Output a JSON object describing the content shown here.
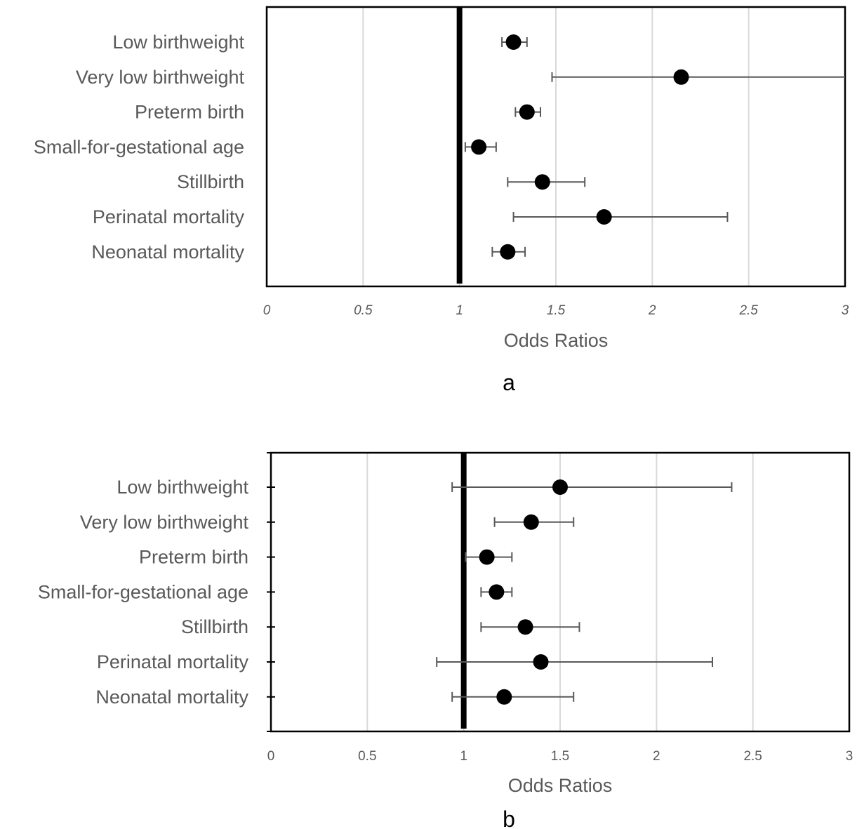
{
  "chart_data": [
    {
      "type": "forest",
      "panel_label": "a",
      "xlabel": "Odds Ratios",
      "xlim": [
        0,
        3
      ],
      "xticks": [
        "0",
        "0.5",
        "1",
        "1.5",
        "2",
        "2.5",
        "3"
      ],
      "reference_line": 1,
      "categories": [
        "Low birthweight",
        "Very low birthweight",
        "Preterm birth",
        "Small-for-gestational age",
        "Stillbirth",
        "Perinatal mortality",
        "Neonatal mortality"
      ],
      "points": [
        {
          "label": "Low birthweight",
          "or": 1.28,
          "lower": 1.22,
          "upper": 1.35
        },
        {
          "label": "Very low birthweight",
          "or": 2.15,
          "lower": 1.48,
          "upper": 3.0
        },
        {
          "label": "Preterm birth",
          "or": 1.35,
          "lower": 1.29,
          "upper": 1.42
        },
        {
          "label": "Small-for-gestational age",
          "or": 1.1,
          "lower": 1.03,
          "upper": 1.19
        },
        {
          "label": "Stillbirth",
          "or": 1.43,
          "lower": 1.25,
          "upper": 1.65
        },
        {
          "label": "Perinatal mortality",
          "or": 1.75,
          "lower": 1.28,
          "upper": 2.39
        },
        {
          "label": "Neonatal mortality",
          "or": 1.25,
          "lower": 1.17,
          "upper": 1.34
        }
      ],
      "grid": true,
      "tick_style": "italic"
    },
    {
      "type": "forest",
      "panel_label": "b",
      "xlabel": "Odds Ratios",
      "xlim": [
        0,
        3
      ],
      "xticks": [
        "0",
        "0.5",
        "1",
        "1.5",
        "2",
        "2.5",
        "3"
      ],
      "reference_line": 1,
      "categories": [
        "Low birthweight",
        "Very low birthweight",
        "Preterm birth",
        "Small-for-gestational age",
        "Stillbirth",
        "Perinatal mortality",
        "Neonatal mortality"
      ],
      "points": [
        {
          "label": "Low birthweight",
          "or": 1.5,
          "lower": 0.94,
          "upper": 2.39
        },
        {
          "label": "Very low birthweight",
          "or": 1.35,
          "lower": 1.16,
          "upper": 1.57
        },
        {
          "label": "Preterm birth",
          "or": 1.12,
          "lower": 1.01,
          "upper": 1.25
        },
        {
          "label": "Small-for-gestational age",
          "or": 1.17,
          "lower": 1.09,
          "upper": 1.25
        },
        {
          "label": "Stillbirth",
          "or": 1.32,
          "lower": 1.09,
          "upper": 1.6
        },
        {
          "label": "Perinatal mortality",
          "or": 1.4,
          "lower": 0.86,
          "upper": 2.29
        },
        {
          "label": "Neonatal mortality",
          "or": 1.21,
          "lower": 0.94,
          "upper": 1.57
        }
      ],
      "grid": true,
      "tick_style": "normal"
    }
  ]
}
